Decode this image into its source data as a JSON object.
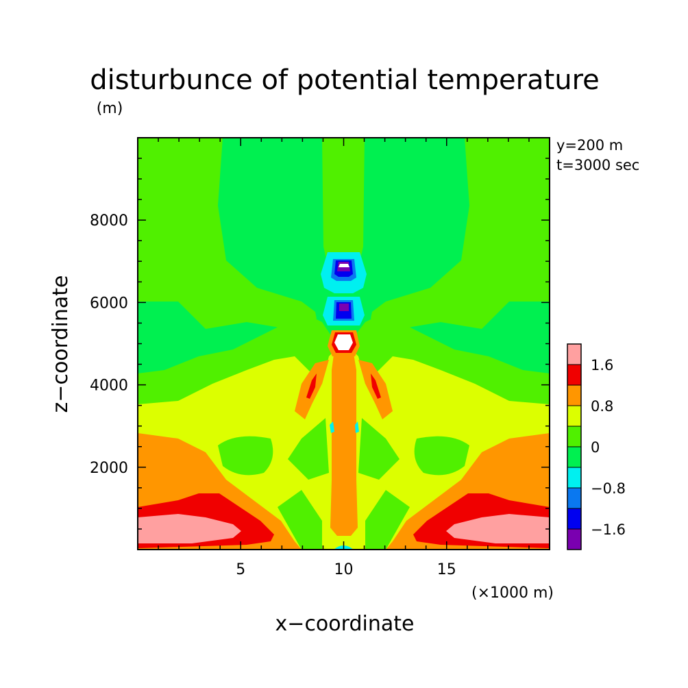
{
  "chart_data": {
    "type": "heatmap",
    "title": "disturbunce of potential temperature",
    "y_unit": "(m)",
    "x_unit": "(×1000 m)",
    "xlabel": "x−coordinate",
    "ylabel": "z−coordinate",
    "annotations": [
      "y=200 m",
      "t=3000 sec"
    ],
    "xlim": [
      0,
      20
    ],
    "ylim": [
      0,
      10000
    ],
    "x_ticks": [
      5,
      10,
      15
    ],
    "y_ticks": [
      2000,
      4000,
      6000,
      8000
    ],
    "x_tick_labels": [
      "5",
      "10",
      "15"
    ],
    "y_tick_labels": [
      "2000",
      "4000",
      "6000",
      "8000"
    ],
    "grid": false,
    "legend": "colorbar, right",
    "colorbar": {
      "levels": [
        -2.0,
        -1.6,
        -1.2,
        -0.8,
        -0.4,
        0,
        0.4,
        0.8,
        1.2,
        1.6,
        2.0
      ],
      "tick_labels": [
        "1.6",
        "0.8",
        "0",
        "−0.8",
        "−1.6"
      ],
      "colors": [
        "#7a00b0",
        "#0000f0",
        "#0a78f0",
        "#00f0f0",
        "#00f050",
        "#50f000",
        "#dcff00",
        "#ff9600",
        "#f00000",
        "#ffa0a0"
      ]
    },
    "regions": [
      {
        "level": 0,
        "x": [
          10.0
        ],
        "z": [
          5900
        ]
      },
      {
        "level": -1.8,
        "x": [
          10.0
        ],
        "z": [
          6800
        ]
      },
      {
        "level": 1.8,
        "x": [
          10.0
        ],
        "z": [
          5000
        ]
      },
      {
        "level": 1.8,
        "x": [
          1.0,
          5.0,
          15.0,
          19.5
        ],
        "z": [
          300,
          300,
          300,
          300
        ]
      }
    ]
  }
}
